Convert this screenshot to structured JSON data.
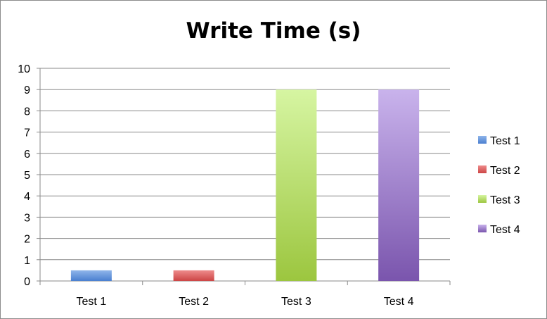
{
  "chart_data": {
    "type": "bar",
    "title": "Write Time (s)",
    "xlabel": "",
    "ylabel": "",
    "categories": [
      "Test 1",
      "Test 2",
      "Test 3",
      "Test 4"
    ],
    "values": [
      0.5,
      0.5,
      9,
      9
    ],
    "ylim": [
      0,
      10
    ],
    "yticks": [
      "0",
      "1",
      "2",
      "3",
      "4",
      "5",
      "6",
      "7",
      "8",
      "9",
      "10"
    ],
    "grid": true,
    "legend_position": "right",
    "legend": [
      "Test 1",
      "Test 2",
      "Test 3",
      "Test 4"
    ],
    "colors": [
      {
        "light": "#8fb5ea",
        "dark": "#4a7fd0"
      },
      {
        "light": "#ee8b8b",
        "dark": "#cc4545"
      },
      {
        "light": "#d6f5a2",
        "dark": "#9cc63f"
      },
      {
        "light": "#c9b3ec",
        "dark": "#7a55ad"
      }
    ]
  }
}
